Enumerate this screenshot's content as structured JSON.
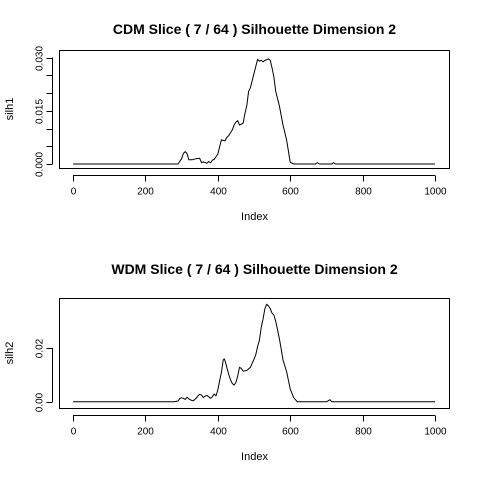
{
  "chart_data": [
    {
      "type": "line",
      "title": "CDM Slice ( 7 / 64 )  Silhouette Dimension 2",
      "xlabel": "Index",
      "ylabel": "silh1",
      "xlim": [
        0,
        1000
      ],
      "ylim": [
        0,
        0.031
      ],
      "xticks": [
        0,
        200,
        400,
        600,
        800,
        1000
      ],
      "xtick_labels": [
        "0",
        "200",
        "400",
        "600",
        "800",
        "1000"
      ],
      "yticks": [
        0,
        0.005,
        0.01,
        0.015,
        0.02,
        0.025,
        0.03
      ],
      "ytick_labels": [
        "0.000",
        "",
        "",
        "0.015",
        "",
        "",
        "0.030"
      ],
      "grid": false,
      "series": [
        {
          "x": [
            0,
            290,
            300,
            305,
            310,
            315,
            320,
            330,
            340,
            350,
            355,
            360,
            370,
            375,
            380,
            385,
            390,
            400,
            410,
            420,
            425,
            430,
            440,
            445,
            450,
            455,
            460,
            470,
            475,
            480,
            485,
            490,
            500,
            510,
            515,
            520,
            525,
            530,
            540,
            545,
            550,
            555,
            560,
            570,
            580,
            590,
            600,
            610,
            620,
            670,
            675,
            680,
            700,
            715,
            720,
            725,
            730,
            1000
          ],
          "y": [
            0,
            0,
            0.0015,
            0.003,
            0.0035,
            0.003,
            0.0012,
            0.0012,
            0.0015,
            0.0016,
            0.0004,
            0.0006,
            0.0002,
            0.0007,
            0.0003,
            0.0011,
            0.0013,
            0.0028,
            0.0068,
            0.0065,
            0.0075,
            0.008,
            0.0096,
            0.011,
            0.0118,
            0.0122,
            0.011,
            0.0115,
            0.0142,
            0.0165,
            0.0205,
            0.0215,
            0.0255,
            0.0295,
            0.029,
            0.0292,
            0.0288,
            0.0292,
            0.0296,
            0.0292,
            0.027,
            0.0245,
            0.0205,
            0.0165,
            0.011,
            0.0068,
            0.0005,
            0,
            0,
            0,
            0.0004,
            0,
            0,
            0,
            0.0004,
            0,
            0,
            0
          ]
        }
      ]
    },
    {
      "type": "line",
      "title": "WDM Slice ( 7 / 64 )  Silhouette Dimension 2",
      "xlabel": "Index",
      "ylabel": "silh2",
      "xlim": [
        0,
        1000
      ],
      "ylim": [
        -0.0008,
        0.037
      ],
      "xticks": [
        0,
        200,
        400,
        600,
        800,
        1000
      ],
      "xtick_labels": [
        "0",
        "200",
        "400",
        "600",
        "800",
        "1000"
      ],
      "yticks": [
        0,
        0.02
      ],
      "ytick_labels": [
        "0.00",
        "0.02"
      ],
      "grid": false,
      "series": [
        {
          "x": [
            0,
            280,
            290,
            295,
            300,
            305,
            310,
            315,
            320,
            330,
            335,
            340,
            345,
            350,
            355,
            360,
            365,
            370,
            380,
            385,
            390,
            395,
            400,
            405,
            410,
            415,
            418,
            420,
            425,
            430,
            435,
            440,
            445,
            450,
            455,
            460,
            465,
            470,
            480,
            490,
            500,
            505,
            510,
            515,
            520,
            525,
            530,
            535,
            540,
            545,
            550,
            555,
            560,
            565,
            570,
            575,
            580,
            590,
            600,
            610,
            620,
            630,
            700,
            705,
            710,
            715,
            720,
            1000
          ],
          "y": [
            0,
            0,
            0.0003,
            0.0012,
            0.0015,
            0.0013,
            0.0009,
            0.0017,
            0.0011,
            0.0004,
            0.0007,
            0.0013,
            0.0022,
            0.0028,
            0.0025,
            0.0016,
            0.0021,
            0.0024,
            0.0013,
            0.0019,
            0.0029,
            0.0022,
            0.0044,
            0.0078,
            0.0108,
            0.0155,
            0.0159,
            0.0152,
            0.0128,
            0.0102,
            0.0082,
            0.0068,
            0.0062,
            0.0072,
            0.0095,
            0.0128,
            0.0124,
            0.0114,
            0.0116,
            0.0128,
            0.0158,
            0.0175,
            0.0205,
            0.0228,
            0.0275,
            0.0308,
            0.0345,
            0.0362,
            0.0355,
            0.0345,
            0.0328,
            0.0322,
            0.0298,
            0.0268,
            0.0235,
            0.0198,
            0.0155,
            0.0112,
            0.0048,
            0.0015,
            0,
            0,
            0,
            0.0004,
            0.0008,
            0,
            0,
            0
          ]
        }
      ]
    }
  ]
}
